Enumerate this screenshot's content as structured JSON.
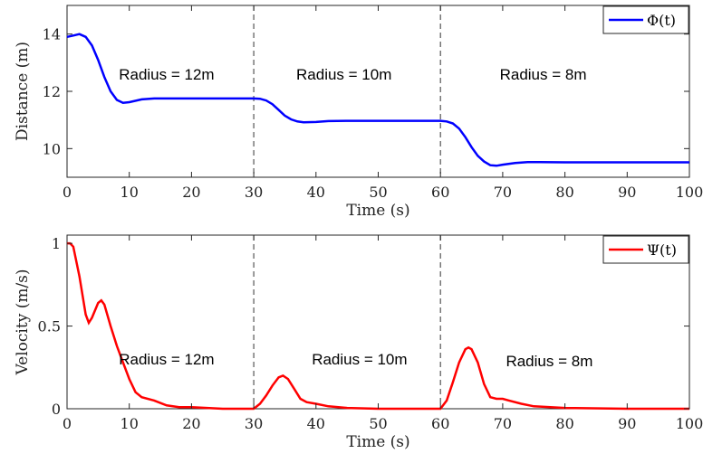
{
  "chart_data": [
    {
      "type": "line",
      "xlabel": "Time (s)",
      "ylabel": "Distance (m)",
      "xlim": [
        0,
        100
      ],
      "ylim": [
        9,
        15
      ],
      "xticks": [
        "0",
        "10",
        "20",
        "30",
        "40",
        "50",
        "60",
        "70",
        "80",
        "90",
        "100"
      ],
      "yticks": [
        "10",
        "12",
        "14"
      ],
      "ytick_values": [
        10,
        12,
        14
      ],
      "vlines": [
        30,
        60
      ],
      "legend": "top-right",
      "annotations": [
        {
          "text": "Radius = 12m",
          "x": 16,
          "y": 12.6
        },
        {
          "text": "Radius = 10m",
          "x": 44.5,
          "y": 12.6
        },
        {
          "text": "Radius = 8m",
          "x": 76.5,
          "y": 12.6
        }
      ],
      "series": [
        {
          "name": "Φ(t)",
          "color": "#0000ff",
          "x": [
            0,
            1,
            2,
            3,
            4,
            5,
            6,
            7,
            8,
            9,
            10,
            12,
            14,
            16,
            20,
            25,
            29,
            30,
            31,
            32,
            33,
            34,
            35,
            36,
            37,
            38,
            40,
            42,
            45,
            50,
            55,
            59,
            60,
            61,
            62,
            63,
            64,
            65,
            66,
            67,
            68,
            69,
            70,
            72,
            74,
            76,
            80,
            90,
            100
          ],
          "y": [
            13.9,
            13.95,
            14.0,
            13.9,
            13.6,
            13.1,
            12.5,
            12.0,
            11.7,
            11.6,
            11.62,
            11.72,
            11.75,
            11.75,
            11.75,
            11.75,
            11.75,
            11.75,
            11.74,
            11.68,
            11.55,
            11.35,
            11.15,
            11.02,
            10.95,
            10.92,
            10.93,
            10.96,
            10.97,
            10.97,
            10.97,
            10.97,
            10.97,
            10.95,
            10.88,
            10.7,
            10.4,
            10.05,
            9.75,
            9.55,
            9.42,
            9.4,
            9.44,
            9.5,
            9.53,
            9.53,
            9.52,
            9.52,
            9.52
          ]
        }
      ]
    },
    {
      "type": "line",
      "xlabel": "Time (s)",
      "ylabel": "Velocity (m/s)",
      "xlim": [
        0,
        100
      ],
      "ylim": [
        0,
        1.05
      ],
      "xticks": [
        "0",
        "10",
        "20",
        "30",
        "40",
        "50",
        "60",
        "70",
        "80",
        "90",
        "100"
      ],
      "yticks": [
        "0",
        "0.5",
        "1"
      ],
      "ytick_values": [
        0,
        0.5,
        1
      ],
      "vlines": [
        30,
        60
      ],
      "legend": "top-right",
      "annotations": [
        {
          "text": "Radius = 12m",
          "x": 16,
          "y": 0.3
        },
        {
          "text": "Radius = 10m",
          "x": 47,
          "y": 0.3
        },
        {
          "text": "Radius = 8m",
          "x": 77.5,
          "y": 0.29
        }
      ],
      "series": [
        {
          "name": "Ψ(t)",
          "color": "#ff0000",
          "x": [
            0,
            0.5,
            1,
            2,
            3,
            3.5,
            4,
            5,
            5.5,
            6,
            7,
            8,
            9,
            10,
            11,
            12,
            14,
            16,
            18,
            20,
            25,
            30,
            31,
            32,
            33,
            34,
            34.7,
            35.5,
            36.5,
            37.5,
            38.5,
            40,
            42,
            45,
            50,
            55,
            60,
            61,
            62,
            63,
            64,
            64.5,
            65,
            66,
            67,
            68,
            69,
            70,
            71,
            73,
            75,
            80,
            90,
            100
          ],
          "y": [
            1.0,
            1.0,
            0.98,
            0.8,
            0.57,
            0.52,
            0.55,
            0.64,
            0.655,
            0.63,
            0.5,
            0.38,
            0.28,
            0.18,
            0.1,
            0.07,
            0.05,
            0.02,
            0.01,
            0.01,
            0.0,
            0.0,
            0.03,
            0.08,
            0.14,
            0.19,
            0.2,
            0.18,
            0.12,
            0.06,
            0.04,
            0.03,
            0.015,
            0.005,
            0.0,
            0.0,
            0.0,
            0.05,
            0.16,
            0.28,
            0.36,
            0.37,
            0.36,
            0.28,
            0.15,
            0.07,
            0.06,
            0.06,
            0.05,
            0.03,
            0.015,
            0.005,
            0.0,
            0.0
          ]
        }
      ]
    }
  ]
}
